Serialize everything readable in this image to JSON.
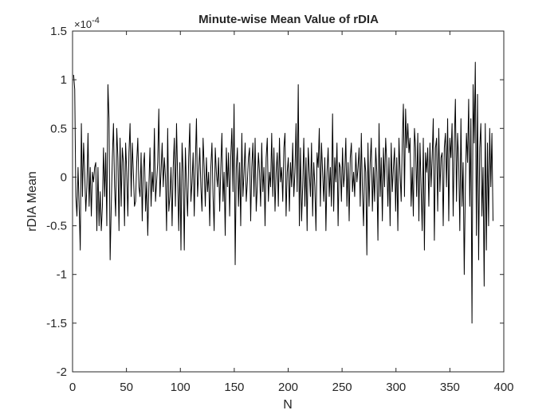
{
  "chart_data": {
    "type": "line",
    "title": "Minute-wise Mean Value of rDIA",
    "xlabel": "N",
    "ylabel": "rDIA Mean",
    "y_exponent": "×10",
    "y_exponent_power": "-4",
    "xlim": [
      0,
      400
    ],
    "ylim": [
      -2,
      1.5
    ],
    "x_ticks": [
      0,
      50,
      100,
      150,
      200,
      250,
      300,
      350,
      400
    ],
    "x_tick_labels": [
      "0",
      "50",
      "100",
      "150",
      "200",
      "250",
      "300",
      "350",
      "400"
    ],
    "y_ticks": [
      -2,
      -1.5,
      -1,
      -0.5,
      0,
      0.5,
      1,
      1.5
    ],
    "y_tick_labels": [
      "-2",
      "-1.5",
      "-1",
      "-0.5",
      "0",
      "0.5",
      "1",
      "1.5"
    ],
    "grid": false,
    "box": true,
    "line_color": "#000000",
    "series": [
      {
        "values": [
          1.05,
          0.9,
          -0.2,
          -0.4,
          0.1,
          -0.3,
          -0.75,
          0.55,
          -0.2,
          0.35,
          0.05,
          -0.35,
          -0.1,
          0.45,
          -0.3,
          0.1,
          -0.4,
          0.05,
          -0.05,
          0.1,
          0.15,
          -0.55,
          0.1,
          -0.5,
          -0.15,
          -0.55,
          -0.3,
          0.3,
          -0.2,
          0.25,
          -0.5,
          0.95,
          0.6,
          -0.85,
          -0.3,
          0.2,
          0.55,
          -0.1,
          -0.4,
          0.5,
          0.2,
          -0.55,
          0.4,
          -0.3,
          0.3,
          0.15,
          -0.5,
          0.35,
          0.05,
          -0.4,
          0.25,
          0.55,
          -0.2,
          0.35,
          0.05,
          -0.3,
          -0.25,
          0.15,
          0.4,
          -0.1,
          -0.2,
          0.25,
          -0.45,
          0.1,
          0.25,
          -0.35,
          -0.05,
          -0.6,
          -0.1,
          0.3,
          -0.3,
          0.05,
          -0.15,
          0.5,
          -0.25,
          -0.05,
          0.15,
          0.7,
          -0.2,
          0.05,
          0.35,
          -0.1,
          0.2,
          0.0,
          -0.55,
          0.5,
          -0.35,
          -0.2,
          0.1,
          -0.5,
          0.1,
          0.4,
          -0.3,
          0.55,
          0.0,
          -0.55,
          0.15,
          -0.75,
          0.35,
          0.05,
          -0.75,
          0.3,
          -0.1,
          -0.4,
          0.2,
          0.55,
          -0.25,
          -0.05,
          0.25,
          -0.4,
          0.15,
          0.6,
          -0.2,
          0.05,
          0.3,
          -0.1,
          -0.35,
          0.4,
          0.1,
          -0.3,
          0.2,
          -0.15,
          0.05,
          -0.5,
          0.1,
          0.35,
          -0.2,
          -0.55,
          0.3,
          0.05,
          -0.1,
          0.2,
          -0.35,
          0.1,
          0.45,
          -0.25,
          0.05,
          -0.6,
          0.3,
          -0.1,
          0.25,
          -0.4,
          0.2,
          0.5,
          -0.15,
          0.75,
          -0.9,
          0.1,
          0.3,
          -0.3,
          0.15,
          -0.5,
          0.45,
          -0.2,
          0.05,
          0.35,
          -0.25,
          -0.05,
          0.2,
          0.3,
          -0.45,
          0.1,
          0.35,
          -0.2,
          0.4,
          -0.35,
          -0.1,
          0.25,
          0.05,
          -0.3,
          0.35,
          -0.15,
          0.1,
          -0.5,
          0.2,
          0.4,
          -0.25,
          0.05,
          -0.1,
          0.45,
          -0.2,
          0.3,
          -0.35,
          0.05,
          0.25,
          -0.3,
          0.4,
          -0.05,
          0.1,
          -0.25,
          0.3,
          0.45,
          -0.4,
          0.05,
          0.2,
          -0.35,
          0.15,
          -0.1,
          0.35,
          -0.2,
          0.05,
          0.55,
          -0.15,
          0.95,
          -0.5,
          0.3,
          -0.45,
          -0.1,
          0.4,
          -0.3,
          0.2,
          -0.55,
          0.3,
          0.05,
          -0.2,
          0.35,
          -0.4,
          0.15,
          -0.1,
          -0.55,
          0.25,
          0.1,
          0.5,
          -0.3,
          0.35,
          0.05,
          -0.25,
          0.2,
          -0.55,
          0.05,
          0.3,
          -0.2,
          0.1,
          -0.3,
          0.65,
          -0.35,
          0.2,
          -0.05,
          0.35,
          -0.5,
          0.15,
          0.1,
          -0.25,
          0.3,
          -0.1,
          0.05,
          0.4,
          -0.3,
          0.15,
          -0.45,
          0.2,
          0.35,
          -0.15,
          0.05,
          -0.2,
          0.25,
          -0.05,
          0.1,
          0.3,
          -0.3,
          0.45,
          -0.15,
          -0.5,
          0.2,
          0.05,
          -0.8,
          0.35,
          -0.3,
          0.15,
          0.4,
          -0.35,
          0.1,
          -0.25,
          0.3,
          0.05,
          -0.65,
          0.55,
          -0.2,
          0.2,
          -0.45,
          0.3,
          -0.1,
          0.4,
          0.15,
          -0.3,
          0.2,
          -0.5,
          0.35,
          -0.15,
          0.1,
          0.3,
          -0.35,
          0.2,
          -0.55,
          0.4,
          0.05,
          -0.25,
          0.35,
          0.75,
          -0.2,
          0.7,
          0.3,
          0.55,
          0.25,
          0.4,
          -0.3,
          0.1,
          -0.4,
          0.5,
          0.3,
          -0.2,
          0.45,
          -0.45,
          0.35,
          -0.1,
          -0.55,
          0.4,
          -0.75,
          0.25,
          0.05,
          0.3,
          -0.3,
          0.35,
          -0.1,
          0.2,
          0.6,
          -0.65,
          0.3,
          0.4,
          -0.35,
          0.5,
          -0.15,
          0.2,
          0.25,
          -0.5,
          0.3,
          0.45,
          -0.1,
          0.6,
          -0.45,
          0.4,
          0.2,
          0.55,
          -0.4,
          0.35,
          0.8,
          -0.25,
          0.45,
          0.15,
          -0.55,
          0.6,
          -0.3,
          0.15,
          -1.0,
          -0.1,
          0.45,
          0.15,
          0.8,
          -0.3,
          0.6,
          -1.5,
          0.95,
          0.35,
          1.18,
          -0.6,
          0.85,
          -0.85,
          0.3,
          0.55,
          -0.4,
          0.1,
          -1.12,
          0.55,
          -0.75,
          0.35,
          -0.5,
          0.5,
          -0.1,
          0.45,
          -0.45
        ]
      }
    ]
  }
}
